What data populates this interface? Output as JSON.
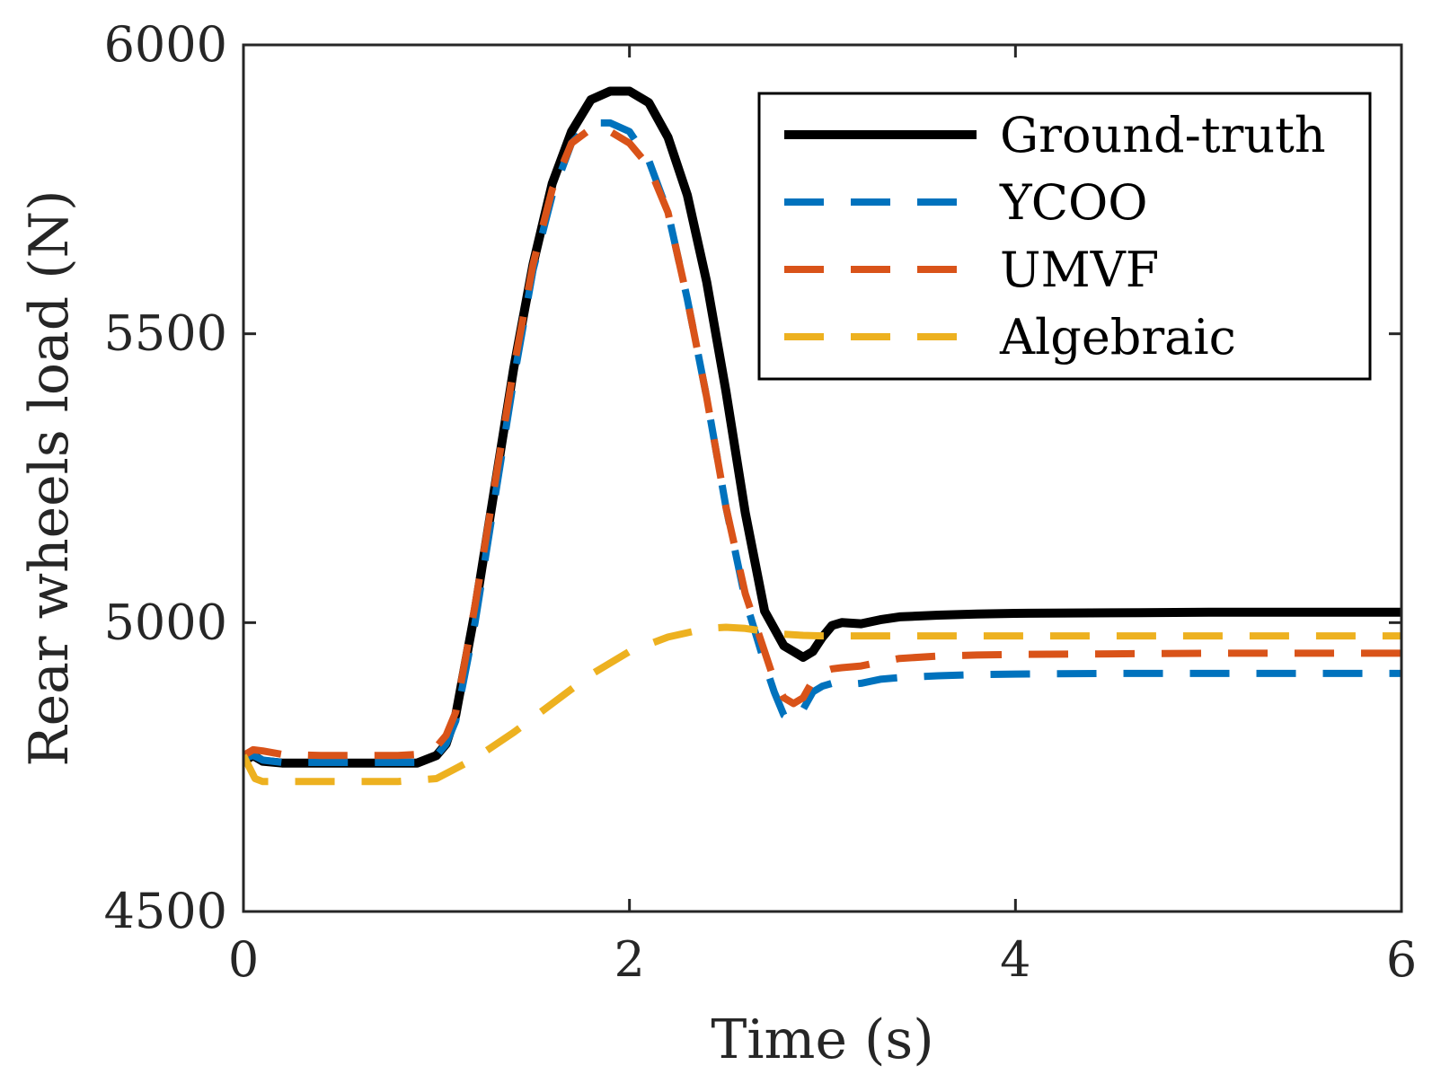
{
  "chart_data": {
    "type": "line",
    "title": "",
    "xlabel": "Time (s)",
    "ylabel": "Rear wheels load (N)",
    "xlim": [
      0,
      6
    ],
    "ylim": [
      4500,
      6000
    ],
    "xticks": [
      0,
      2,
      4,
      6
    ],
    "yticks": [
      4500,
      5000,
      5500,
      6000
    ],
    "xtick_labels": [
      "0",
      "2",
      "4",
      "6"
    ],
    "ytick_labels": [
      "4500",
      "5000",
      "5500",
      "6000"
    ],
    "grid": false,
    "legend_position": "top-right",
    "series": [
      {
        "name": "Ground-truth",
        "color": "#000000",
        "style": "solid",
        "x": [
          0,
          0.05,
          0.1,
          0.2,
          0.4,
          0.6,
          0.8,
          0.9,
          1.0,
          1.05,
          1.1,
          1.2,
          1.3,
          1.4,
          1.5,
          1.6,
          1.7,
          1.8,
          1.9,
          2.0,
          2.1,
          2.2,
          2.3,
          2.4,
          2.5,
          2.6,
          2.7,
          2.8,
          2.85,
          2.9,
          2.95,
          3.0,
          3.05,
          3.1,
          3.2,
          3.3,
          3.4,
          3.6,
          3.8,
          4.0,
          4.5,
          5.0,
          5.5,
          6.0
        ],
        "y": [
          4760,
          4770,
          4760,
          4757,
          4757,
          4757,
          4757,
          4757,
          4770,
          4790,
          4840,
          5020,
          5230,
          5440,
          5620,
          5760,
          5850,
          5905,
          5920,
          5920,
          5900,
          5840,
          5740,
          5590,
          5400,
          5190,
          5020,
          4960,
          4950,
          4940,
          4950,
          4975,
          4995,
          5000,
          4998,
          5005,
          5010,
          5013,
          5015,
          5016,
          5017,
          5018,
          5018,
          5018
        ]
      },
      {
        "name": "YCOO",
        "color": "#0072BD",
        "style": "dashed",
        "x": [
          0,
          0.05,
          0.1,
          0.2,
          0.4,
          0.6,
          0.8,
          0.9,
          1.0,
          1.05,
          1.1,
          1.2,
          1.3,
          1.4,
          1.5,
          1.6,
          1.7,
          1.8,
          1.9,
          2.0,
          2.1,
          2.2,
          2.3,
          2.4,
          2.5,
          2.6,
          2.7,
          2.75,
          2.8,
          2.85,
          2.9,
          2.95,
          3.0,
          3.05,
          3.1,
          3.2,
          3.3,
          3.4,
          3.6,
          3.8,
          4.0,
          4.5,
          5.0,
          5.5,
          6.0
        ],
        "y": [
          4765,
          4770,
          4762,
          4758,
          4758,
          4758,
          4758,
          4758,
          4770,
          4790,
          4830,
          5000,
          5210,
          5420,
          5610,
          5740,
          5830,
          5865,
          5865,
          5850,
          5800,
          5710,
          5560,
          5390,
          5200,
          5040,
          4930,
          4880,
          4840,
          4830,
          4850,
          4880,
          4890,
          4895,
          4892,
          4895,
          4902,
          4905,
          4908,
          4910,
          4911,
          4912,
          4912,
          4912,
          4912
        ]
      },
      {
        "name": "UMVF",
        "color": "#D95319",
        "style": "dashed",
        "x": [
          0,
          0.05,
          0.1,
          0.2,
          0.4,
          0.6,
          0.8,
          0.9,
          1.0,
          1.05,
          1.1,
          1.2,
          1.3,
          1.4,
          1.5,
          1.6,
          1.7,
          1.8,
          1.9,
          2.0,
          2.1,
          2.2,
          2.3,
          2.4,
          2.5,
          2.6,
          2.7,
          2.75,
          2.8,
          2.85,
          2.9,
          2.95,
          3.0,
          3.05,
          3.1,
          3.2,
          3.3,
          3.4,
          3.6,
          3.8,
          4.0,
          4.5,
          5.0,
          5.5,
          6.0
        ],
        "y": [
          4770,
          4780,
          4778,
          4772,
          4770,
          4770,
          4770,
          4772,
          4785,
          4805,
          4845,
          5030,
          5235,
          5440,
          5620,
          5750,
          5830,
          5855,
          5850,
          5830,
          5790,
          5710,
          5560,
          5390,
          5200,
          5050,
          4950,
          4900,
          4870,
          4860,
          4870,
          4900,
          4915,
          4920,
          4922,
          4925,
          4932,
          4938,
          4942,
          4944,
          4945,
          4946,
          4947,
          4947,
          4947
        ]
      },
      {
        "name": "Algebraic",
        "color": "#EDB120",
        "style": "dashed",
        "x": [
          0,
          0.03,
          0.06,
          0.1,
          0.2,
          0.4,
          0.6,
          0.8,
          1.0,
          1.2,
          1.4,
          1.6,
          1.8,
          2.0,
          2.2,
          2.4,
          2.5,
          2.6,
          2.7,
          2.8,
          2.9,
          3.0,
          3.2,
          3.5,
          4.0,
          4.5,
          5.0,
          5.5,
          6.0
        ],
        "y": [
          4770,
          4750,
          4730,
          4725,
          4725,
          4725,
          4725,
          4725,
          4730,
          4765,
          4810,
          4860,
          4910,
          4950,
          4975,
          4990,
          4992,
          4990,
          4985,
          4980,
          4978,
          4977,
          4977,
          4977,
          4977,
          4977,
          4977,
          4977,
          4977
        ]
      }
    ]
  }
}
